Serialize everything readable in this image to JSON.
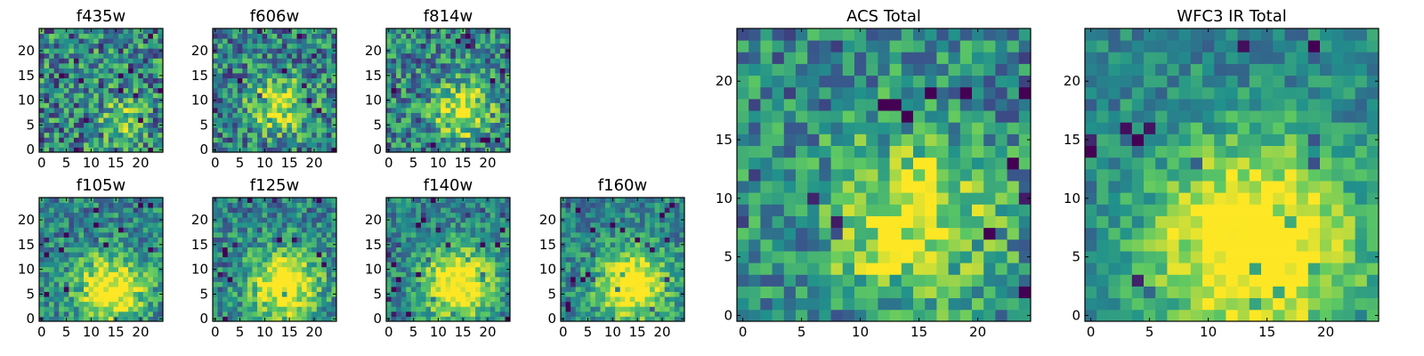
{
  "figure": {
    "colormap": "viridis",
    "colormap_stops": [
      "#440154",
      "#3b528b",
      "#21918c",
      "#5ec962",
      "#fde725"
    ],
    "background": "#ffffff"
  },
  "chart_data": [
    {
      "type": "heatmap",
      "title": "f435w",
      "grid_size": 25,
      "xticks": [
        "0",
        "5",
        "10",
        "15",
        "20"
      ],
      "yticks": [
        "0",
        "5",
        "10",
        "15",
        "20"
      ],
      "source_center": [
        16,
        6
      ],
      "source_sigma": 3,
      "source_amp": 0.3,
      "noise": 0.5,
      "seed": 1
    },
    {
      "type": "heatmap",
      "title": "f606w",
      "grid_size": 25,
      "xticks": [
        "0",
        "5",
        "10",
        "15",
        "20"
      ],
      "yticks": [
        "0",
        "5",
        "10",
        "15",
        "20"
      ],
      "source_center": [
        13,
        9
      ],
      "source_sigma": 4,
      "source_amp": 0.5,
      "noise": 0.45,
      "seed": 2
    },
    {
      "type": "heatmap",
      "title": "f814w",
      "grid_size": 25,
      "xticks": [
        "0",
        "5",
        "10",
        "15",
        "20"
      ],
      "yticks": [
        "0",
        "5",
        "10",
        "15",
        "20"
      ],
      "source_center": [
        15,
        8
      ],
      "source_sigma": 4,
      "source_amp": 0.55,
      "noise": 0.45,
      "seed": 3
    },
    {
      "type": "heatmap",
      "title": "f105w",
      "grid_size": 25,
      "xticks": [
        "0",
        "5",
        "10",
        "15",
        "20"
      ],
      "yticks": [
        "0",
        "5",
        "10",
        "15",
        "20"
      ],
      "source_center": [
        14,
        6
      ],
      "source_sigma": 5,
      "source_amp": 0.65,
      "noise": 0.35,
      "seed": 4
    },
    {
      "type": "heatmap",
      "title": "f125w",
      "grid_size": 25,
      "xticks": [
        "0",
        "5",
        "10",
        "15",
        "20"
      ],
      "yticks": [
        "0",
        "5",
        "10",
        "15",
        "20"
      ],
      "source_center": [
        14,
        7
      ],
      "source_sigma": 5,
      "source_amp": 0.65,
      "noise": 0.35,
      "seed": 5
    },
    {
      "type": "heatmap",
      "title": "f140w",
      "grid_size": 25,
      "xticks": [
        "0",
        "5",
        "10",
        "15",
        "20"
      ],
      "yticks": [
        "0",
        "5",
        "10",
        "15",
        "20"
      ],
      "source_center": [
        14,
        7
      ],
      "source_sigma": 5,
      "source_amp": 0.7,
      "noise": 0.3,
      "seed": 6
    },
    {
      "type": "heatmap",
      "title": "f160w",
      "grid_size": 25,
      "xticks": [
        "0",
        "5",
        "10",
        "15",
        "20"
      ],
      "yticks": [
        "0",
        "5",
        "10",
        "15",
        "20"
      ],
      "source_center": [
        14,
        7
      ],
      "source_sigma": 5,
      "source_amp": 0.7,
      "noise": 0.3,
      "seed": 7
    },
    {
      "type": "heatmap",
      "title": "ACS Total",
      "grid_size": 25,
      "xticks": [
        "0",
        "5",
        "10",
        "15",
        "20"
      ],
      "yticks": [
        "0",
        "5",
        "10",
        "15",
        "20"
      ],
      "source_center": [
        14,
        8
      ],
      "source_sigma": 5,
      "source_amp": 0.55,
      "noise": 0.4,
      "seed": 8
    },
    {
      "type": "heatmap",
      "title": "WFC3 IR Total",
      "grid_size": 25,
      "xticks": [
        "0",
        "5",
        "10",
        "15",
        "20"
      ],
      "yticks": [
        "0",
        "5",
        "10",
        "15",
        "20"
      ],
      "source_center": [
        14,
        6
      ],
      "source_sigma": 6,
      "source_amp": 0.75,
      "noise": 0.25,
      "seed": 9
    }
  ]
}
